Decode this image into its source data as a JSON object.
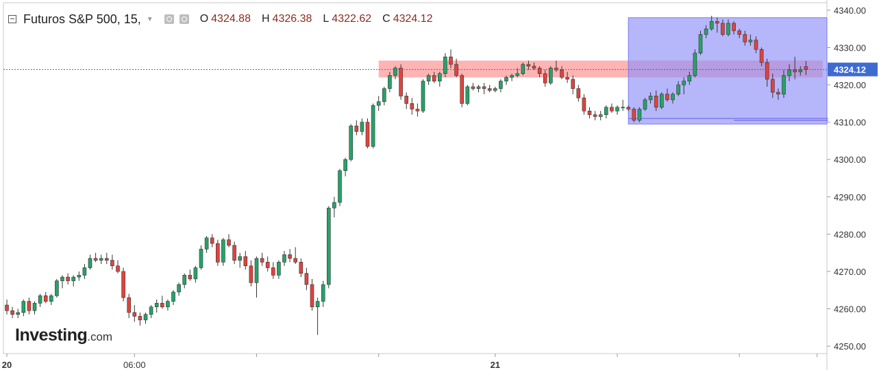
{
  "legend": {
    "title": "Futuros S&P 500, 15,",
    "open_label": "O",
    "open": "4324.88",
    "high_label": "H",
    "high": "4326.38",
    "low_label": "L",
    "low": "4322.62",
    "close_label": "C",
    "close": "4324.12",
    "value_color": "#8b2b1e"
  },
  "logo": {
    "brand": "Investing",
    "tld": ".com"
  },
  "colors": {
    "up": "#26a269",
    "down": "#e0433d",
    "resistance_zone": "#ff9494",
    "range_box": "#8f8ff7",
    "price_line": "#3f5fbf",
    "price_tag": "#3f6bd1",
    "grid_border": "#c8c8c8"
  },
  "chart_data": {
    "type": "candlestick",
    "instrument": "Futuros S&P 500",
    "interval": "15",
    "ylim": [
      4248,
      4342
    ],
    "y_ticks": [
      4250,
      4260,
      4270,
      4280,
      4290,
      4300,
      4310,
      4320,
      4330,
      4340
    ],
    "y_tick_labels": [
      "4250.00",
      "4260.00",
      "4270.00",
      "4280.00",
      "4290.00",
      "4300.00",
      "4310.00",
      "4320.00",
      "4330.00",
      "4340.00"
    ],
    "x_labels": [
      {
        "index": 0,
        "label": "20",
        "bold": true
      },
      {
        "index": 23,
        "label": "06:00",
        "bold": false
      },
      {
        "index": 88,
        "label": "21",
        "bold": true
      }
    ],
    "last_price": 4324.12,
    "last_price_label": "4324.12",
    "annotations": [
      {
        "type": "zone",
        "from_index": 67,
        "to_index": 147,
        "y_low": 4322,
        "y_high": 4326.5
      },
      {
        "type": "box",
        "from_index": 112,
        "to_index": 149,
        "y_low": 4309.5,
        "y_high": 4338
      },
      {
        "type": "hline",
        "from_index": 112,
        "to_index": 148,
        "y": 4311
      },
      {
        "type": "hline",
        "from_index": 131,
        "to_index": 148,
        "y": 4310.5
      }
    ],
    "candles": [
      [
        4261.0,
        4262.5,
        4258.5,
        4259.5
      ],
      [
        4259.5,
        4260.5,
        4257.5,
        4258.5
      ],
      [
        4258.5,
        4260.0,
        4257.5,
        4259.0
      ],
      [
        4259.0,
        4262.5,
        4258.0,
        4262.0
      ],
      [
        4262.0,
        4263.0,
        4258.5,
        4259.5
      ],
      [
        4259.5,
        4262.0,
        4258.5,
        4261.5
      ],
      [
        4261.5,
        4264.0,
        4260.5,
        4263.5
      ],
      [
        4263.5,
        4264.5,
        4261.5,
        4262.0
      ],
      [
        4262.0,
        4264.0,
        4261.0,
        4263.5
      ],
      [
        4263.5,
        4268.0,
        4263.0,
        4267.5
      ],
      [
        4267.5,
        4269.0,
        4265.5,
        4268.5
      ],
      [
        4268.5,
        4269.5,
        4266.5,
        4267.5
      ],
      [
        4267.5,
        4269.0,
        4266.0,
        4268.5
      ],
      [
        4268.5,
        4270.0,
        4267.5,
        4269.0
      ],
      [
        4269.0,
        4272.0,
        4268.0,
        4271.0
      ],
      [
        4271.0,
        4274.5,
        4270.5,
        4273.5
      ],
      [
        4273.5,
        4275.0,
        4272.5,
        4273.0
      ],
      [
        4273.0,
        4274.5,
        4272.0,
        4273.5
      ],
      [
        4273.5,
        4275.0,
        4272.0,
        4273.0
      ],
      [
        4273.0,
        4274.5,
        4270.5,
        4271.5
      ],
      [
        4271.5,
        4273.0,
        4269.5,
        4270.0
      ],
      [
        4270.0,
        4271.0,
        4262.0,
        4263.0
      ],
      [
        4263.0,
        4264.0,
        4257.5,
        4259.0
      ],
      [
        4259.0,
        4261.0,
        4256.5,
        4258.0
      ],
      [
        4258.0,
        4259.0,
        4255.5,
        4257.0
      ],
      [
        4257.0,
        4259.0,
        4256.0,
        4258.5
      ],
      [
        4258.5,
        4261.0,
        4257.5,
        4260.5
      ],
      [
        4260.5,
        4262.5,
        4259.0,
        4261.5
      ],
      [
        4261.5,
        4263.5,
        4260.0,
        4260.5
      ],
      [
        4260.5,
        4262.5,
        4259.5,
        4262.0
      ],
      [
        4262.0,
        4265.0,
        4261.0,
        4264.5
      ],
      [
        4264.5,
        4267.0,
        4263.5,
        4266.5
      ],
      [
        4266.5,
        4269.5,
        4265.5,
        4269.0
      ],
      [
        4269.0,
        4270.5,
        4267.5,
        4268.0
      ],
      [
        4268.0,
        4271.5,
        4267.0,
        4271.0
      ],
      [
        4271.0,
        4277.0,
        4270.5,
        4276.0
      ],
      [
        4276.0,
        4279.5,
        4275.0,
        4279.0
      ],
      [
        4279.0,
        4280.0,
        4276.5,
        4277.5
      ],
      [
        4277.5,
        4278.5,
        4271.5,
        4272.5
      ],
      [
        4272.5,
        4279.0,
        4271.5,
        4278.5
      ],
      [
        4278.5,
        4280.0,
        4276.5,
        4277.0
      ],
      [
        4277.0,
        4278.0,
        4272.0,
        4273.0
      ],
      [
        4273.0,
        4275.0,
        4271.0,
        4274.0
      ],
      [
        4274.0,
        4275.5,
        4270.5,
        4271.5
      ],
      [
        4271.5,
        4273.0,
        4266.0,
        4267.0
      ],
      [
        4267.0,
        4274.0,
        4263.0,
        4273.5
      ],
      [
        4273.5,
        4275.0,
        4271.5,
        4272.5
      ],
      [
        4272.5,
        4274.0,
        4270.0,
        4271.0
      ],
      [
        4271.0,
        4272.5,
        4268.0,
        4269.0
      ],
      [
        4269.0,
        4273.0,
        4268.0,
        4272.5
      ],
      [
        4272.5,
        4275.5,
        4271.5,
        4274.5
      ],
      [
        4274.5,
        4276.0,
        4272.5,
        4273.5
      ],
      [
        4273.5,
        4276.5,
        4272.0,
        4272.5
      ],
      [
        4272.5,
        4273.5,
        4268.5,
        4269.5
      ],
      [
        4269.5,
        4271.0,
        4265.0,
        4266.5
      ],
      [
        4266.5,
        4268.0,
        4259.5,
        4260.5
      ],
      [
        4260.5,
        4263.0,
        4253.0,
        4262.0
      ],
      [
        4262.0,
        4267.5,
        4260.5,
        4266.5
      ],
      [
        4266.5,
        4287.5,
        4265.5,
        4287.0
      ],
      [
        4287.0,
        4290.0,
        4284.5,
        4288.5
      ],
      [
        4288.5,
        4297.5,
        4287.5,
        4297.0
      ],
      [
        4297.0,
        4300.5,
        4295.5,
        4300.0
      ],
      [
        4300.0,
        4309.5,
        4299.5,
        4309.0
      ],
      [
        4309.0,
        4310.5,
        4306.5,
        4307.5
      ],
      [
        4307.5,
        4311.0,
        4306.5,
        4310.0
      ],
      [
        4310.0,
        4311.0,
        4303.0,
        4303.5
      ],
      [
        4303.5,
        4315.0,
        4303.0,
        4314.5
      ],
      [
        4314.5,
        4317.0,
        4313.0,
        4315.5
      ],
      [
        4315.5,
        4319.5,
        4314.5,
        4319.0
      ],
      [
        4319.0,
        4323.5,
        4318.0,
        4322.5
      ],
      [
        4322.5,
        4325.0,
        4321.5,
        4324.5
      ],
      [
        4324.5,
        4325.5,
        4316.0,
        4317.0
      ],
      [
        4317.0,
        4318.0,
        4313.5,
        4315.0
      ],
      [
        4315.0,
        4316.5,
        4312.0,
        4313.5
      ],
      [
        4313.5,
        4315.0,
        4311.5,
        4313.0
      ],
      [
        4313.0,
        4321.5,
        4312.5,
        4321.0
      ],
      [
        4321.0,
        4323.0,
        4320.0,
        4322.5
      ],
      [
        4322.5,
        4323.5,
        4320.5,
        4321.0
      ],
      [
        4321.0,
        4323.5,
        4319.5,
        4323.0
      ],
      [
        4323.0,
        4328.5,
        4322.0,
        4327.5
      ],
      [
        4327.5,
        4329.5,
        4324.5,
        4325.5
      ],
      [
        4325.5,
        4327.0,
        4322.0,
        4322.5
      ],
      [
        4322.5,
        4323.0,
        4314.0,
        4315.0
      ],
      [
        4315.0,
        4320.0,
        4314.5,
        4319.5
      ],
      [
        4319.5,
        4320.5,
        4318.5,
        4319.0
      ],
      [
        4319.0,
        4320.0,
        4318.0,
        4319.5
      ],
      [
        4319.5,
        4320.5,
        4317.5,
        4319.0
      ],
      [
        4319.0,
        4320.0,
        4318.0,
        4318.5
      ],
      [
        4318.5,
        4319.5,
        4318.0,
        4319.0
      ],
      [
        4319.0,
        4321.5,
        4318.0,
        4321.0
      ],
      [
        4321.0,
        4322.5,
        4320.0,
        4322.0
      ],
      [
        4322.0,
        4323.0,
        4321.0,
        4322.5
      ],
      [
        4322.5,
        4324.5,
        4322.0,
        4323.0
      ],
      [
        4323.0,
        4326.0,
        4322.5,
        4325.5
      ],
      [
        4325.5,
        4326.5,
        4324.0,
        4325.0
      ],
      [
        4325.0,
        4326.0,
        4324.0,
        4324.5
      ],
      [
        4324.5,
        4325.0,
        4322.0,
        4323.0
      ],
      [
        4323.0,
        4324.0,
        4319.5,
        4320.5
      ],
      [
        4320.5,
        4325.0,
        4320.0,
        4324.5
      ],
      [
        4324.5,
        4326.5,
        4323.5,
        4324.0
      ],
      [
        4324.0,
        4325.0,
        4321.5,
        4322.0
      ],
      [
        4322.0,
        4323.5,
        4320.5,
        4321.5
      ],
      [
        4321.5,
        4322.5,
        4317.5,
        4319.0
      ],
      [
        4319.0,
        4320.0,
        4315.5,
        4316.5
      ],
      [
        4316.5,
        4317.5,
        4312.0,
        4313.0
      ],
      [
        4313.0,
        4314.0,
        4311.0,
        4312.0
      ],
      [
        4312.0,
        4313.0,
        4310.5,
        4311.5
      ],
      [
        4311.5,
        4313.0,
        4310.5,
        4312.0
      ],
      [
        4312.0,
        4314.5,
        4311.0,
        4314.0
      ],
      [
        4314.0,
        4315.0,
        4312.5,
        4313.0
      ],
      [
        4313.0,
        4314.5,
        4312.0,
        4314.0
      ],
      [
        4314.0,
        4316.0,
        4313.0,
        4314.0
      ],
      [
        4314.0,
        4314.5,
        4313.0,
        4313.5
      ],
      [
        4313.5,
        4314.0,
        4310.0,
        4310.5
      ],
      [
        4310.5,
        4314.0,
        4310.0,
        4313.5
      ],
      [
        4313.5,
        4316.5,
        4313.0,
        4316.0
      ],
      [
        4316.0,
        4318.0,
        4315.0,
        4317.0
      ],
      [
        4317.0,
        4318.5,
        4313.0,
        4314.0
      ],
      [
        4314.0,
        4318.0,
        4313.5,
        4317.5
      ],
      [
        4317.5,
        4319.0,
        4315.5,
        4316.0
      ],
      [
        4316.0,
        4318.0,
        4315.0,
        4317.5
      ],
      [
        4317.5,
        4321.0,
        4317.0,
        4320.0
      ],
      [
        4320.0,
        4322.0,
        4317.5,
        4321.0
      ],
      [
        4321.0,
        4323.5,
        4320.0,
        4322.5
      ],
      [
        4322.5,
        4329.5,
        4322.0,
        4328.5
      ],
      [
        4328.5,
        4334.5,
        4328.0,
        4333.5
      ],
      [
        4333.5,
        4336.0,
        4332.5,
        4335.0
      ],
      [
        4335.0,
        4338.5,
        4334.5,
        4337.0
      ],
      [
        4337.0,
        4338.0,
        4334.0,
        4336.5
      ],
      [
        4336.5,
        4337.5,
        4333.0,
        4333.5
      ],
      [
        4333.5,
        4337.5,
        4333.0,
        4336.5
      ],
      [
        4336.5,
        4337.0,
        4333.5,
        4334.5
      ],
      [
        4334.5,
        4335.0,
        4332.5,
        4333.5
      ],
      [
        4333.5,
        4334.5,
        4330.5,
        4331.5
      ],
      [
        4331.5,
        4333.5,
        4330.5,
        4332.0
      ],
      [
        4332.0,
        4333.0,
        4328.5,
        4329.5
      ],
      [
        4329.5,
        4330.0,
        4325.0,
        4326.0
      ],
      [
        4326.0,
        4327.0,
        4319.5,
        4321.5
      ],
      [
        4321.5,
        4323.0,
        4316.5,
        4318.0
      ],
      [
        4318.0,
        4319.0,
        4316.0,
        4317.5
      ],
      [
        4317.5,
        4324.0,
        4316.5,
        4322.5
      ],
      [
        4322.5,
        4325.5,
        4321.0,
        4324.0
      ],
      [
        4324.0,
        4327.5,
        4321.5,
        4323.5
      ],
      [
        4323.5,
        4325.0,
        4322.5,
        4324.0
      ],
      [
        4324.88,
        4326.38,
        4322.62,
        4324.12
      ]
    ]
  }
}
